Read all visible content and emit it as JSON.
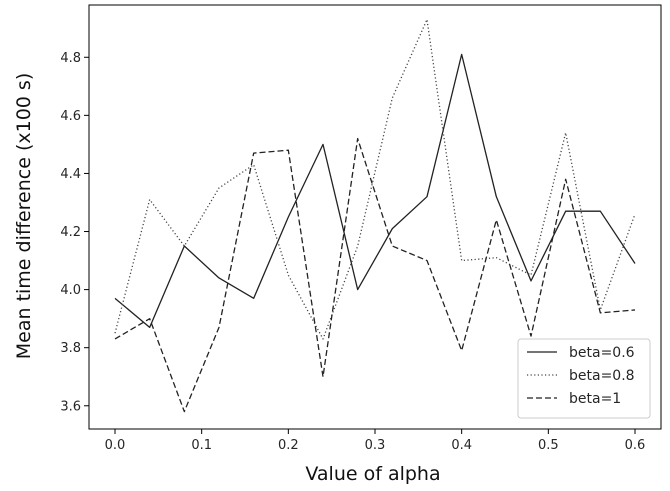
{
  "chart_data": {
    "type": "line",
    "xlabel": "Value of alpha",
    "ylabel": "Mean time difference (x100 s)",
    "xlim": [
      -0.03,
      0.63
    ],
    "ylim": [
      3.52,
      4.98
    ],
    "xticks": [
      0.0,
      0.1,
      0.2,
      0.3,
      0.4,
      0.5,
      0.6
    ],
    "xtick_labels": [
      "0.0",
      "0.1",
      "0.2",
      "0.3",
      "0.4",
      "0.5",
      "0.6"
    ],
    "yticks": [
      3.6,
      3.8,
      4.0,
      4.2,
      4.4,
      4.6,
      4.8
    ],
    "ytick_labels": [
      "3.6",
      "3.8",
      "4.0",
      "4.2",
      "4.4",
      "4.6",
      "4.8"
    ],
    "grid": false,
    "legend_position": "lower-right",
    "x": [
      0.0,
      0.04,
      0.08,
      0.12,
      0.16,
      0.2,
      0.24,
      0.28,
      0.32,
      0.36,
      0.4,
      0.44,
      0.48,
      0.52,
      0.56,
      0.6
    ],
    "series": [
      {
        "name": "beta=0.6",
        "style": "solid",
        "color": "#222222",
        "values": [
          3.97,
          3.87,
          4.15,
          4.04,
          3.97,
          4.25,
          4.5,
          4.0,
          4.21,
          4.32,
          4.81,
          4.32,
          4.03,
          4.27,
          4.27,
          4.09
        ]
      },
      {
        "name": "beta=0.8",
        "style": "dotted",
        "color": "#444444",
        "values": [
          3.85,
          4.31,
          4.15,
          4.35,
          4.43,
          4.05,
          3.83,
          4.15,
          4.66,
          4.93,
          4.1,
          4.11,
          4.05,
          4.54,
          3.93,
          4.26
        ]
      },
      {
        "name": "beta=1",
        "style": "dashed",
        "color": "#222222",
        "values": [
          3.83,
          3.9,
          3.58,
          3.87,
          4.47,
          4.48,
          3.7,
          4.52,
          4.15,
          4.1,
          3.79,
          4.24,
          3.84,
          4.38,
          3.92,
          3.93
        ]
      }
    ]
  }
}
